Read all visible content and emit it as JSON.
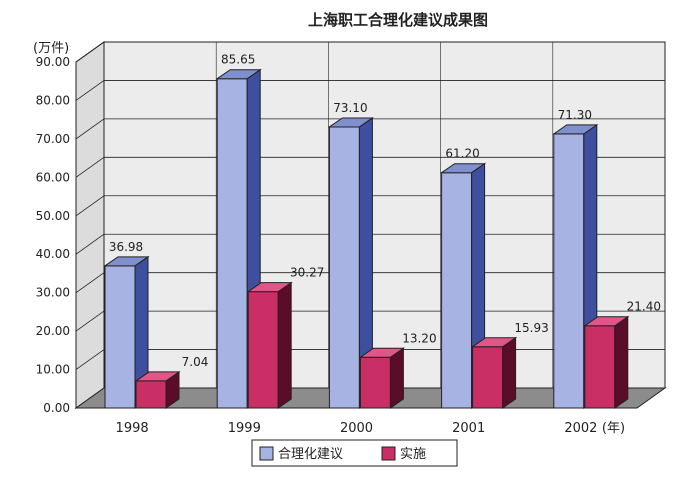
{
  "chart_data": {
    "type": "bar",
    "title": "上海职工合理化建议成果图",
    "y_unit_label": "(万件)",
    "x_unit_label": "(年)",
    "categories": [
      "1998",
      "1999",
      "2000",
      "2001",
      "2002"
    ],
    "series": [
      {
        "name": "合理化建议",
        "values": [
          36.98,
          85.65,
          73.1,
          61.2,
          71.3
        ],
        "value_labels": [
          "36.98",
          "85.65",
          "73.10",
          "61.20",
          "71.30"
        ]
      },
      {
        "name": "实施",
        "values": [
          7.04,
          30.27,
          13.2,
          15.93,
          21.4
        ],
        "value_labels": [
          "7.04",
          "30.27",
          "13.20",
          "15.93",
          "21.40"
        ]
      }
    ],
    "y_ticks": [
      "0.00",
      "10.00",
      "20.00",
      "30.00",
      "40.00",
      "50.00",
      "60.00",
      "70.00",
      "80.00",
      "90.00"
    ],
    "ylim": [
      0,
      90
    ],
    "grid": true,
    "legend": "bottom",
    "three_d": true
  },
  "colors": {
    "series1_front": "#a7b3e3",
    "series1_side": "#3d4f9e",
    "series1_top": "#8090cf",
    "series2_front": "#c92e64",
    "series2_side": "#5a0c28",
    "series2_top": "#e15588",
    "plot_back": "#ececec",
    "floor": "#8c8c8c"
  }
}
